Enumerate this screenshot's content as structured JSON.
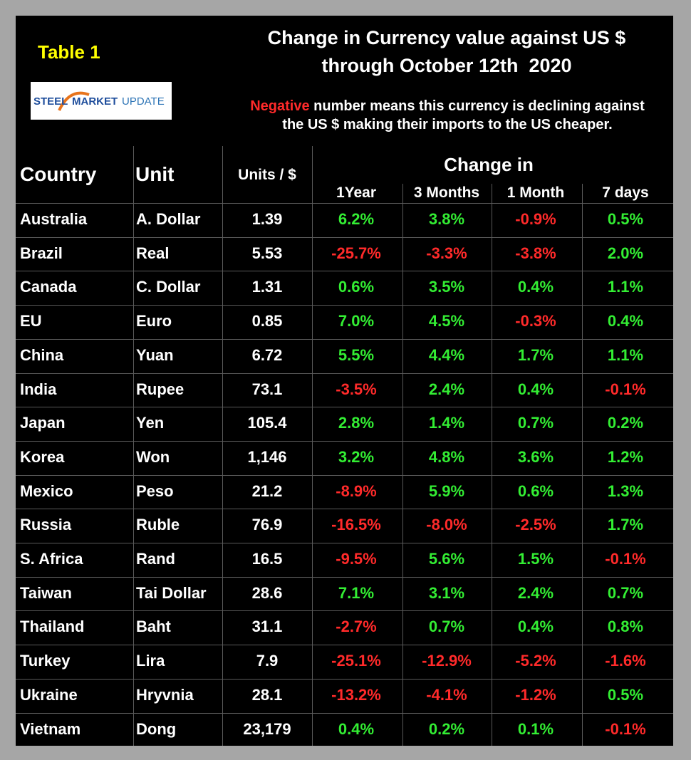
{
  "header": {
    "label": "Table 1",
    "title": [
      "Change in Currency value against US $",
      "through October 12th  2020"
    ],
    "logo": [
      "STEEL",
      "MARKET",
      "UPDATE"
    ],
    "note": [
      "Negative",
      " number means this currency is declining against",
      "the US $ making their imports to the US cheaper."
    ]
  },
  "table": {
    "columns": [
      "Country",
      "Unit",
      "Units / $"
    ],
    "group": "Change in",
    "subcolumns": [
      "1Year",
      "3 Months",
      "1 Month",
      "7 days"
    ],
    "rows": [
      [
        "Australia",
        "A. Dollar",
        "1.39",
        "6.2%",
        "3.8%",
        "-0.9%",
        "0.5%"
      ],
      [
        "Brazil",
        "Real",
        "5.53",
        "-25.7%",
        "-3.3%",
        "-3.8%",
        "2.0%"
      ],
      [
        "Canada",
        "C. Dollar",
        "1.31",
        "0.6%",
        "3.5%",
        "0.4%",
        "1.1%"
      ],
      [
        "EU",
        "Euro",
        "0.85",
        "7.0%",
        "4.5%",
        "-0.3%",
        "0.4%"
      ],
      [
        "China",
        "Yuan",
        "6.72",
        "5.5%",
        "4.4%",
        "1.7%",
        "1.1%"
      ],
      [
        "India",
        "Rupee",
        "73.1",
        "-3.5%",
        "2.4%",
        "0.4%",
        "-0.1%"
      ],
      [
        "Japan",
        "Yen",
        "105.4",
        "2.8%",
        "1.4%",
        "0.7%",
        "0.2%"
      ],
      [
        "Korea",
        "Won",
        "1,146",
        "3.2%",
        "4.8%",
        "3.6%",
        "1.2%"
      ],
      [
        "Mexico",
        "Peso",
        "21.2",
        "-8.9%",
        "5.9%",
        "0.6%",
        "1.3%"
      ],
      [
        "Russia",
        "Ruble",
        "76.9",
        "-16.5%",
        "-8.0%",
        "-2.5%",
        "1.7%"
      ],
      [
        "S. Africa",
        "Rand",
        "16.5",
        "-9.5%",
        "5.6%",
        "1.5%",
        "-0.1%"
      ],
      [
        "Taiwan",
        "Tai Dollar",
        "28.6",
        "7.1%",
        "3.1%",
        "2.4%",
        "0.7%"
      ],
      [
        "Thailand",
        "Baht",
        "31.1",
        "-2.7%",
        "0.7%",
        "0.4%",
        "0.8%"
      ],
      [
        "Turkey",
        "Lira",
        "7.9",
        "-25.1%",
        "-12.9%",
        "-5.2%",
        "-1.6%"
      ],
      [
        "Ukraine",
        "Hryvnia",
        "28.1",
        "-13.2%",
        "-4.1%",
        "-1.2%",
        "0.5%"
      ],
      [
        "Vietnam",
        "Dong",
        "23,179",
        "0.4%",
        "0.2%",
        "0.1%",
        "-0.1%"
      ]
    ]
  }
}
